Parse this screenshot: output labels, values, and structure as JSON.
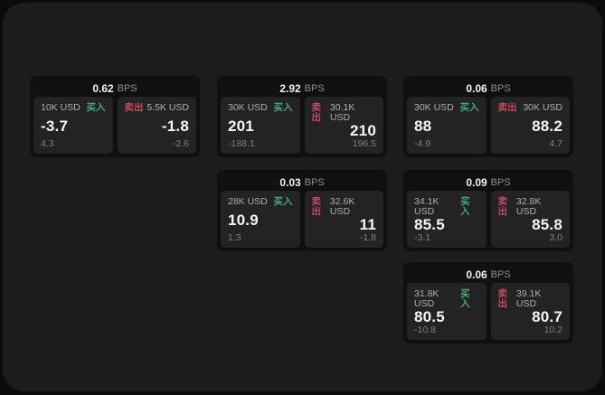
{
  "labels": {
    "bps": "BPS",
    "buy": "买入",
    "sell": "卖出"
  },
  "colors": {
    "buy_green": "#40ab70",
    "sell_red": "#c2495a",
    "panel_bg": "#1c1c1e",
    "card_bg": "#101013",
    "tile_bg": "#232326"
  },
  "cards": [
    {
      "bps": "0.62",
      "buy": {
        "amount": "10K USD",
        "price": "-3.7",
        "delta": "4.3"
      },
      "sell": {
        "amount": "5.5K USD",
        "price": "-1.8",
        "delta": "-2.6"
      }
    },
    {
      "bps": "2.92",
      "buy": {
        "amount": "30K USD",
        "price": "201",
        "delta": "-188.1"
      },
      "sell": {
        "amount": "30.1K USD",
        "price": "210",
        "delta": "196.5"
      }
    },
    {
      "bps": "0.06",
      "buy": {
        "amount": "30K USD",
        "price": "88",
        "delta": "-4.9"
      },
      "sell": {
        "amount": "30K USD",
        "price": "88.2",
        "delta": "4.7"
      }
    },
    {
      "bps": "0.03",
      "buy": {
        "amount": "28K USD",
        "price": "10.9",
        "delta": "1.3"
      },
      "sell": {
        "amount": "32.6K USD",
        "price": "11",
        "delta": "-1.8"
      }
    },
    {
      "bps": "0.09",
      "buy": {
        "amount": "34.1K USD",
        "price": "85.5",
        "delta": "-3.1"
      },
      "sell": {
        "amount": "32.8K USD",
        "price": "85.8",
        "delta": "3.0"
      }
    },
    {
      "bps": "0.06",
      "buy": {
        "amount": "31.8K USD",
        "price": "80.5",
        "delta": "-10.8"
      },
      "sell": {
        "amount": "39.1K USD",
        "price": "80.7",
        "delta": "10.2"
      }
    }
  ]
}
